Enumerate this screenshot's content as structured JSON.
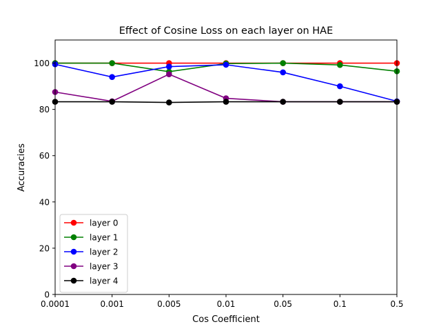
{
  "chart_data": {
    "type": "line",
    "title": "Effect of Cosine Loss on each layer on HAE",
    "xlabel": "Cos Coefficient",
    "ylabel": "Accuracies",
    "categories": [
      "0.0001",
      "0.001",
      "0.005",
      "0.01",
      "0.05",
      "0.1",
      "0.5"
    ],
    "ylim": [
      0,
      110
    ],
    "yticks": [
      "0",
      "20",
      "40",
      "60",
      "80",
      "100"
    ],
    "grid": false,
    "legend_position": "lower-left",
    "series": [
      {
        "name": "layer 0",
        "color": "#ff0000",
        "values": [
          100,
          100,
          100,
          100,
          100,
          100,
          100
        ]
      },
      {
        "name": "layer 1",
        "color": "#008000",
        "values": [
          100,
          100,
          96.3,
          99.8,
          100,
          99.2,
          96.5
        ]
      },
      {
        "name": "layer 2",
        "color": "#0000ff",
        "values": [
          99.5,
          94,
          98.5,
          99.3,
          96,
          90,
          83.5
        ]
      },
      {
        "name": "layer 3",
        "color": "#800080",
        "values": [
          87.5,
          83.5,
          95.2,
          84.8,
          83.3,
          83.3,
          83.3
        ]
      },
      {
        "name": "layer 4",
        "color": "#000000",
        "values": [
          83.3,
          83.3,
          83,
          83.3,
          83.3,
          83.3,
          83.3
        ]
      }
    ]
  }
}
